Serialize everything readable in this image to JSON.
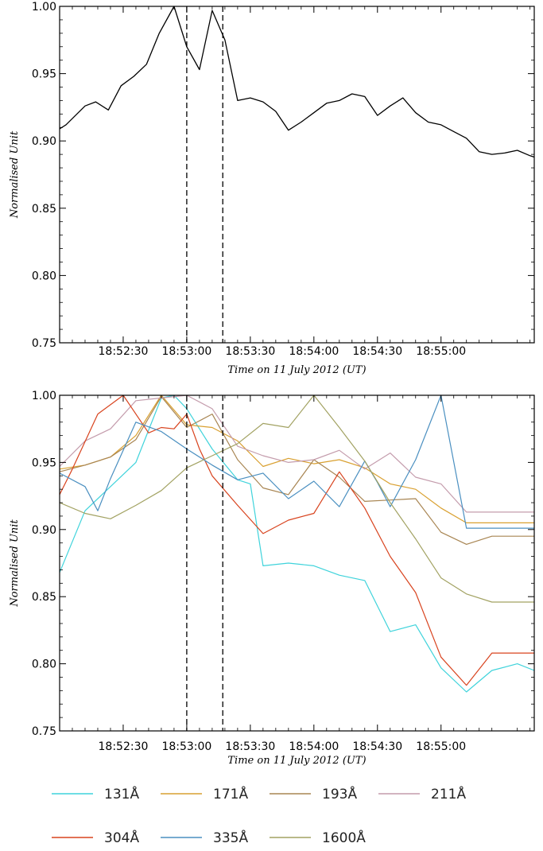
{
  "chart_data": [
    {
      "type": "line",
      "xlabel": "Time on 11 July 2012 (UT)",
      "ylabel": "Normalised Unit",
      "x_ticks": [
        "18:52:30",
        "18:53:00",
        "18:53:30",
        "18:54:00",
        "18:54:30",
        "18:55:00"
      ],
      "x_tick_seconds": [
        30,
        60,
        90,
        120,
        150,
        180
      ],
      "xlim_seconds": [
        0,
        224
      ],
      "ylim": [
        0.75,
        1.0
      ],
      "y_ticks": [
        "0.75",
        "0.80",
        "0.85",
        "0.90",
        "0.95",
        "1.00"
      ],
      "y_tick_values": [
        0.75,
        0.8,
        0.85,
        0.9,
        0.95,
        1.0
      ],
      "vlines_seconds": [
        60,
        77
      ],
      "series": [
        {
          "color": "#000000",
          "x": [
            0,
            3,
            12,
            17,
            23,
            29,
            35,
            41,
            47,
            54,
            60,
            66,
            72,
            78,
            84,
            90,
            96,
            102,
            108,
            114,
            120,
            126,
            132,
            138,
            144,
            150,
            156,
            162,
            168,
            174,
            180,
            186,
            192,
            198,
            204,
            210,
            216,
            222,
            224
          ],
          "y": [
            0.909,
            0.912,
            0.926,
            0.929,
            0.923,
            0.941,
            0.948,
            0.957,
            0.98,
            1.0,
            0.97,
            0.953,
            0.997,
            0.975,
            0.93,
            0.932,
            0.929,
            0.922,
            0.908,
            0.914,
            0.921,
            0.928,
            0.93,
            0.935,
            0.933,
            0.919,
            0.926,
            0.932,
            0.921,
            0.914,
            0.912,
            0.907,
            0.902,
            0.892,
            0.89,
            0.891,
            0.893,
            0.889,
            0.888
          ]
        }
      ]
    },
    {
      "type": "line",
      "xlabel": "Time on 11 July 2012 (UT)",
      "ylabel": "Normalised Unit",
      "x_ticks": [
        "18:52:30",
        "18:53:00",
        "18:53:30",
        "18:54:00",
        "18:54:30",
        "18:55:00"
      ],
      "x_tick_seconds": [
        30,
        60,
        90,
        120,
        150,
        180
      ],
      "xlim_seconds": [
        0,
        224
      ],
      "ylim": [
        0.75,
        1.0
      ],
      "y_ticks": [
        "0.75",
        "0.80",
        "0.85",
        "0.90",
        "0.95",
        "1.00"
      ],
      "y_tick_values": [
        0.75,
        0.8,
        0.85,
        0.9,
        0.95,
        1.0
      ],
      "vlines_seconds": [
        60,
        77
      ],
      "series": [
        {
          "name": "131Å",
          "color": "#3FD3DB",
          "x": [
            0,
            12,
            24,
            36,
            48,
            54,
            60,
            72,
            84,
            90,
            96,
            108,
            120,
            132,
            144,
            156,
            168,
            180,
            192,
            204,
            216,
            224
          ],
          "y": [
            0.868,
            0.914,
            0.932,
            0.95,
            0.998,
            1.0,
            0.99,
            0.96,
            0.937,
            0.934,
            0.873,
            0.875,
            0.873,
            0.866,
            0.862,
            0.824,
            0.829,
            0.797,
            0.779,
            0.795,
            0.8,
            0.795
          ]
        },
        {
          "name": "171Å",
          "color": "#D9A030",
          "x": [
            0,
            12,
            24,
            36,
            48,
            60,
            72,
            84,
            96,
            108,
            120,
            132,
            144,
            156,
            168,
            180,
            192,
            204,
            216,
            224
          ],
          "y": [
            0.945,
            0.948,
            0.954,
            0.97,
            1.0,
            0.978,
            0.976,
            0.966,
            0.947,
            0.953,
            0.949,
            0.952,
            0.946,
            0.934,
            0.93,
            0.916,
            0.905,
            0.905,
            0.905,
            0.905
          ]
        },
        {
          "name": "193Å",
          "color": "#A88552",
          "x": [
            0,
            12,
            24,
            36,
            48,
            60,
            72,
            84,
            96,
            108,
            120,
            132,
            144,
            156,
            168,
            180,
            192,
            204,
            216,
            224
          ],
          "y": [
            0.943,
            0.948,
            0.954,
            0.967,
            0.999,
            0.976,
            0.986,
            0.952,
            0.931,
            0.926,
            0.952,
            0.939,
            0.921,
            0.922,
            0.923,
            0.898,
            0.889,
            0.895,
            0.895,
            0.895
          ]
        },
        {
          "name": "211Å",
          "color": "#C49CAC",
          "x": [
            0,
            12,
            24,
            36,
            48,
            60,
            72,
            84,
            96,
            108,
            120,
            132,
            144,
            156,
            168,
            180,
            192,
            204,
            216,
            224
          ],
          "y": [
            0.947,
            0.966,
            0.975,
            0.996,
            0.998,
            1.0,
            0.99,
            0.962,
            0.955,
            0.95,
            0.952,
            0.959,
            0.945,
            0.957,
            0.939,
            0.934,
            0.913,
            0.913,
            0.913,
            0.913
          ]
        },
        {
          "name": "304Å",
          "color": "#D8431E",
          "x": [
            0,
            6,
            18,
            30,
            42,
            48,
            54,
            60,
            66,
            72,
            84,
            96,
            108,
            120,
            132,
            144,
            156,
            168,
            180,
            192,
            204,
            216,
            224
          ],
          "y": [
            0.926,
            0.945,
            0.986,
            1.0,
            0.972,
            0.976,
            0.975,
            0.986,
            0.96,
            0.94,
            0.918,
            0.897,
            0.907,
            0.912,
            0.943,
            0.916,
            0.88,
            0.853,
            0.805,
            0.784,
            0.808,
            0.808,
            0.808
          ]
        },
        {
          "name": "335Å",
          "color": "#4A8FC0",
          "x": [
            0,
            12,
            18,
            24,
            36,
            48,
            60,
            72,
            84,
            96,
            108,
            120,
            132,
            144,
            150,
            156,
            168,
            180,
            192,
            204,
            216,
            224
          ],
          "y": [
            0.942,
            0.932,
            0.914,
            0.938,
            0.98,
            0.973,
            0.96,
            0.948,
            0.937,
            0.942,
            0.923,
            0.936,
            0.917,
            0.951,
            0.935,
            0.917,
            0.952,
            1.0,
            0.901,
            0.901,
            0.901,
            0.901
          ]
        },
        {
          "name": "1600Å",
          "color": "#A2A262",
          "x": [
            0,
            12,
            24,
            36,
            48,
            60,
            72,
            84,
            96,
            108,
            120,
            132,
            144,
            156,
            168,
            180,
            192,
            204,
            216,
            224
          ],
          "y": [
            0.92,
            0.912,
            0.908,
            0.918,
            0.929,
            0.946,
            0.955,
            0.964,
            0.979,
            0.976,
            1.0,
            0.976,
            0.951,
            0.92,
            0.893,
            0.864,
            0.852,
            0.846,
            0.846,
            0.846
          ]
        }
      ]
    }
  ]
}
